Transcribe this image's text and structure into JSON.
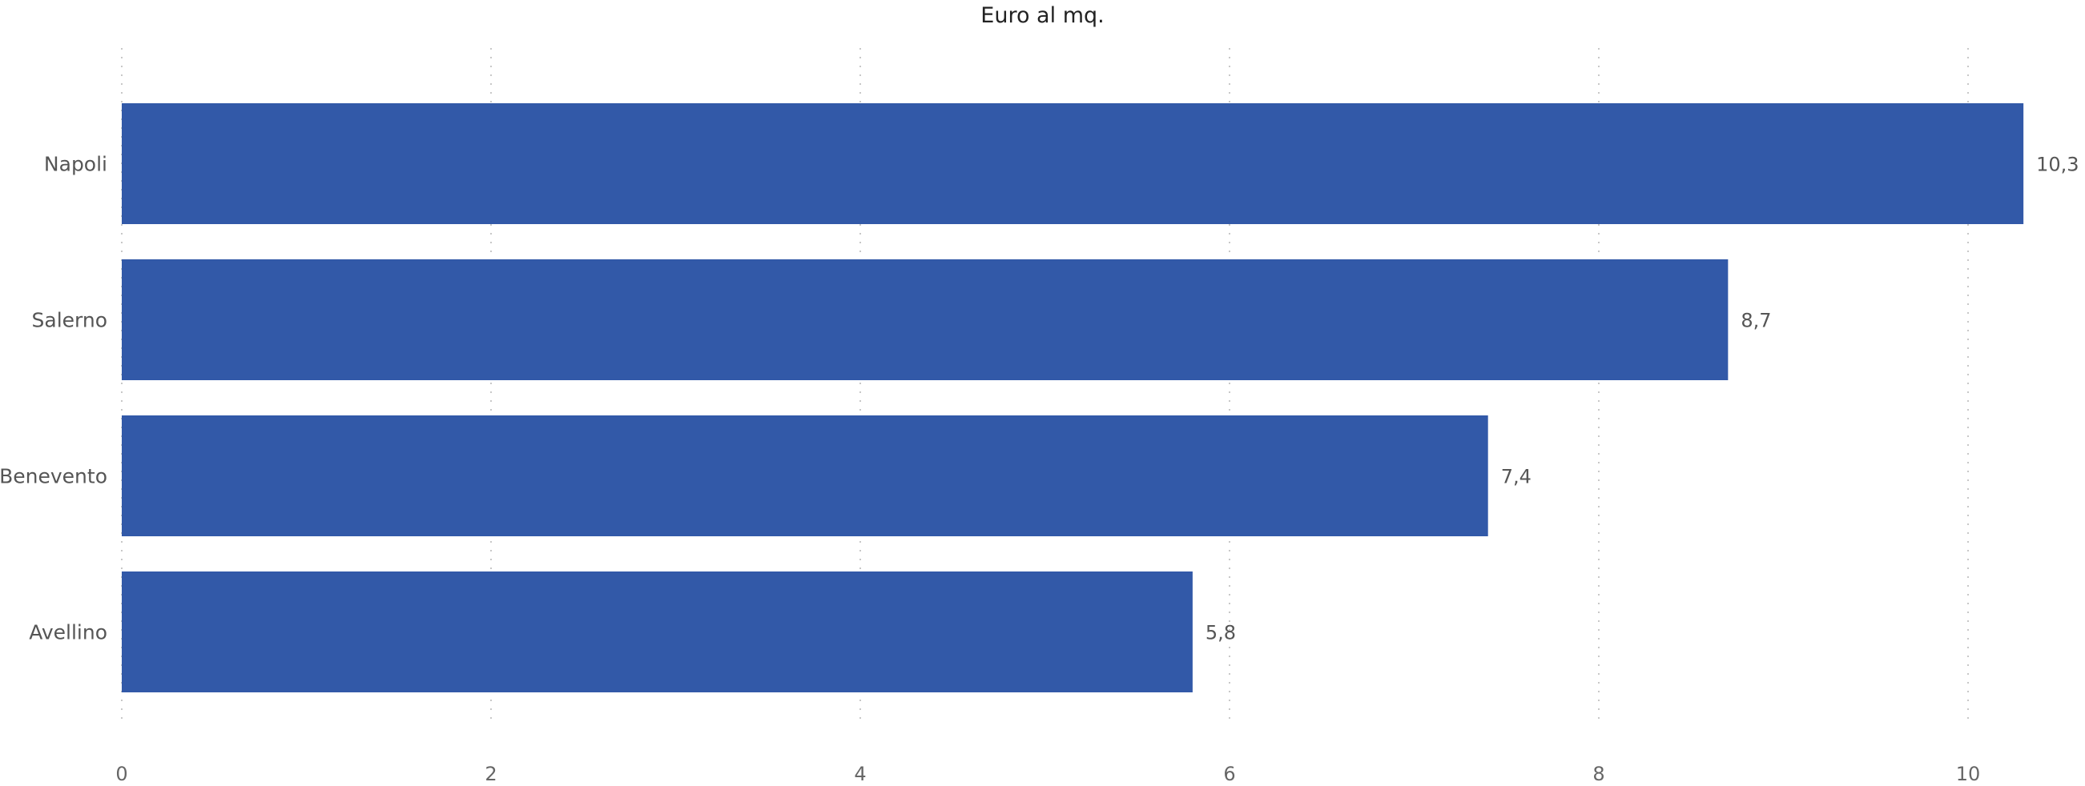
{
  "chart_data": {
    "type": "bar",
    "orientation": "horizontal",
    "title": "Euro al mq.",
    "xlabel": "",
    "ylabel": "",
    "categories": [
      "Napoli",
      "Salerno",
      "Benevento",
      "Avellino"
    ],
    "values": [
      10.3,
      8.7,
      7.4,
      5.8
    ],
    "value_labels": [
      "10,3",
      "8,7",
      "7,4",
      "5,8"
    ],
    "xlim": [
      0,
      10.5
    ],
    "x_ticks": [
      0,
      2,
      4,
      6,
      8,
      10
    ],
    "x_tick_labels": [
      "0",
      "2",
      "4",
      "6",
      "8",
      "10"
    ],
    "grid": true,
    "legend": "none",
    "bar_color": "#3259a8"
  }
}
